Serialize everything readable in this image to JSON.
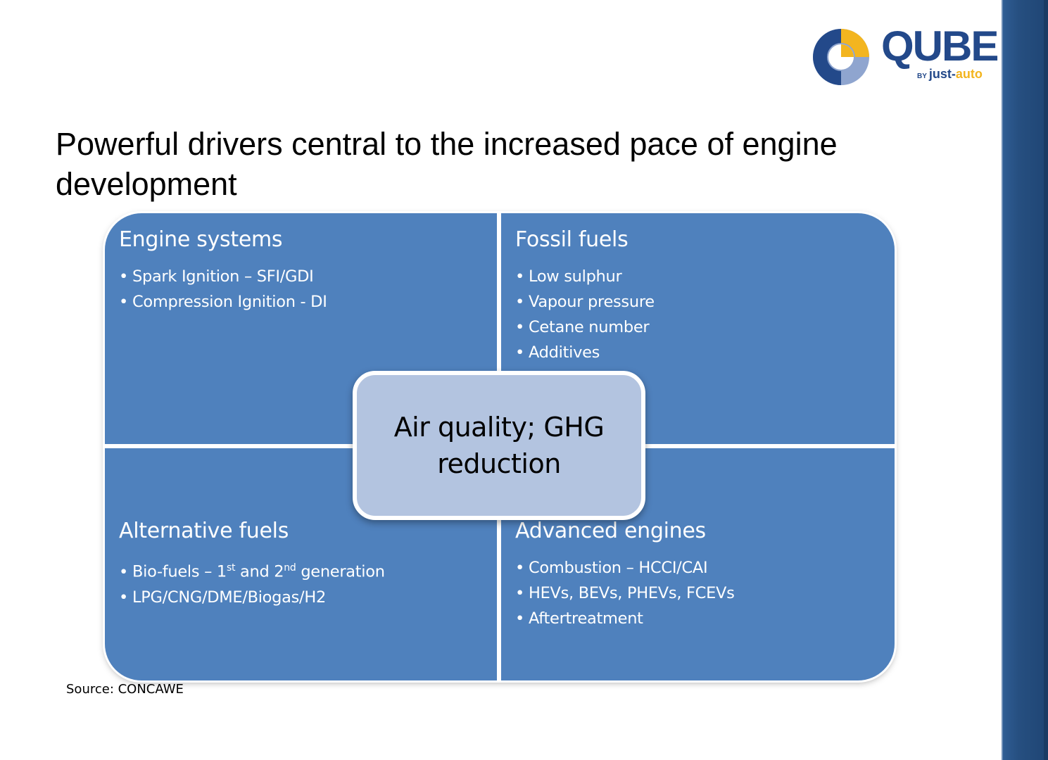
{
  "logo": {
    "brand": "QUBE",
    "by": "BY",
    "sub_part1": "just-",
    "sub_part2": "auto",
    "colors": {
      "navy": "#23498a",
      "gold": "#f3b51f",
      "light_blue": "#8fa5cf"
    }
  },
  "title": "Powerful drivers central to the increased pace of engine development",
  "quadrants": {
    "top_left": {
      "heading": "Engine systems",
      "items": [
        "Spark Ignition – SFI/GDI",
        "Compression Ignition - DI"
      ]
    },
    "top_right": {
      "heading": "Fossil fuels",
      "items": [
        "Low sulphur",
        "Vapour pressure",
        "Cetane number",
        "Additives"
      ]
    },
    "bottom_left": {
      "heading": "Alternative fuels",
      "item1": {
        "pre": "Bio-fuels – 1",
        "sup1": "st",
        "mid": " and 2",
        "sup2": "nd",
        "post": " generation"
      },
      "item2": "LPG/CNG/DME/Biogas/H2"
    },
    "bottom_right": {
      "heading": "Advanced engines",
      "items": [
        "Combustion – HCCI/CAI",
        "HEVs, BEVs, PHEVs, FCEVs",
        "Aftertreatment"
      ]
    }
  },
  "center": "Air quality; GHG reduction",
  "source": "Source: CONCAWE",
  "colors": {
    "quadrant": "#4f81bd",
    "center": "#b3c4e0",
    "sidebar": "#264f80"
  }
}
